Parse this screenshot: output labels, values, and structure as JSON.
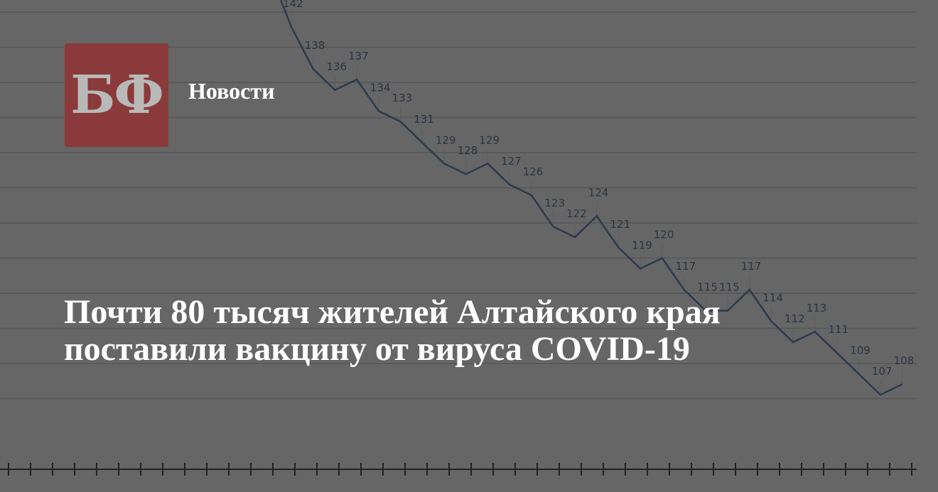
{
  "logo": {
    "text": "БФ",
    "bg_color": "#8a3a3a",
    "text_color": "#b9b9b9"
  },
  "section_label": "Новости",
  "headline": "Почти 80 тысяч жителей Алтайского края поставили вакцину от вируса COVID-19",
  "colors": {
    "background": "#666666",
    "line": "#2c3a4e",
    "grid": "#5a5a5a"
  },
  "chart_data": {
    "type": "line",
    "values": [
      142,
      138,
      136,
      137,
      134,
      133,
      131,
      129,
      128,
      129,
      127,
      126,
      123,
      122,
      124,
      121,
      119,
      120,
      117,
      115,
      115,
      117,
      114,
      112,
      113,
      111,
      109,
      107,
      108
    ],
    "data_labels": true,
    "grid": true
  }
}
